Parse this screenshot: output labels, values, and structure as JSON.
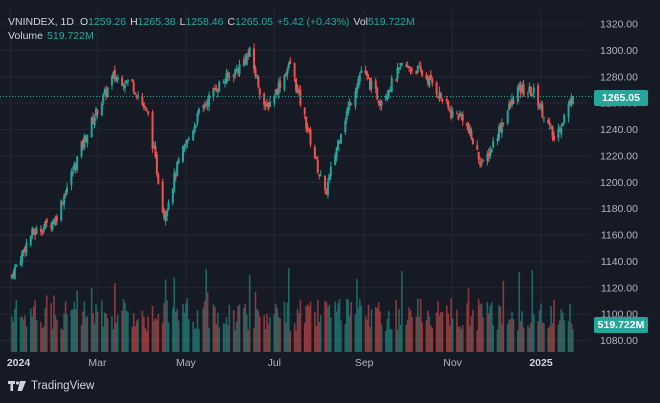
{
  "legend": {
    "symbol": "VNINDEX, 1D",
    "open_label": "O",
    "open": "1259.26",
    "high_label": "H",
    "high": "1265.38",
    "low_label": "L",
    "low": "1258.46",
    "close_label": "C",
    "close": "1265.05",
    "change": "+5.42 (+0.43%)",
    "vol_label": "Vol",
    "vol": "519.722M",
    "volume_label": "Volume",
    "volume_value": "519.722M"
  },
  "price_tag": "1265.05",
  "volume_tag": "519.722M",
  "footer": {
    "brand": "TradingView"
  },
  "colors": {
    "up": "#26a69a",
    "down": "#ef5350",
    "background": "#161a25",
    "grid": "#242733"
  },
  "chart_data": {
    "type": "candlestick",
    "title": "VNINDEX, 1D",
    "y_ticks": [
      "1320.00",
      "1300.00",
      "1280.00",
      "1260.00",
      "1240.00",
      "1220.00",
      "1200.00",
      "1180.00",
      "1160.00",
      "1140.00",
      "1120.00",
      "1100.00",
      "1080.00"
    ],
    "ylim": [
      1075,
      1330
    ],
    "x_labels": [
      "2024",
      "Mar",
      "May",
      "Jul",
      "Sep",
      "Nov",
      "2025"
    ],
    "anchors": [
      [
        "2024-01-02",
        1130
      ],
      [
        "2024-01-15",
        1160
      ],
      [
        "2024-02-01",
        1172
      ],
      [
        "2024-02-20",
        1230
      ],
      [
        "2024-03-01",
        1255
      ],
      [
        "2024-03-12",
        1280
      ],
      [
        "2024-03-25",
        1275
      ],
      [
        "2024-04-05",
        1250
      ],
      [
        "2024-04-16",
        1175
      ],
      [
        "2024-04-26",
        1215
      ],
      [
        "2024-05-10",
        1252
      ],
      [
        "2024-05-22",
        1272
      ],
      [
        "2024-06-05",
        1285
      ],
      [
        "2024-06-14",
        1298
      ],
      [
        "2024-06-25",
        1255
      ],
      [
        "2024-07-05",
        1275
      ],
      [
        "2024-07-12",
        1290
      ],
      [
        "2024-07-24",
        1240
      ],
      [
        "2024-08-05",
        1190
      ],
      [
        "2024-08-16",
        1240
      ],
      [
        "2024-08-30",
        1285
      ],
      [
        "2024-09-12",
        1262
      ],
      [
        "2024-09-20",
        1275
      ],
      [
        "2024-09-27",
        1288
      ],
      [
        "2024-10-08",
        1285
      ],
      [
        "2024-10-18",
        1275
      ],
      [
        "2024-10-31",
        1252
      ],
      [
        "2024-11-08",
        1250
      ],
      [
        "2024-11-18",
        1222
      ],
      [
        "2024-11-22",
        1212
      ],
      [
        "2024-12-05",
        1245
      ],
      [
        "2024-12-16",
        1270
      ],
      [
        "2024-12-27",
        1268
      ],
      [
        "2025-01-03",
        1252
      ],
      [
        "2025-01-10",
        1232
      ],
      [
        "2025-01-17",
        1250
      ],
      [
        "2025-01-23",
        1265.05
      ]
    ]
  }
}
